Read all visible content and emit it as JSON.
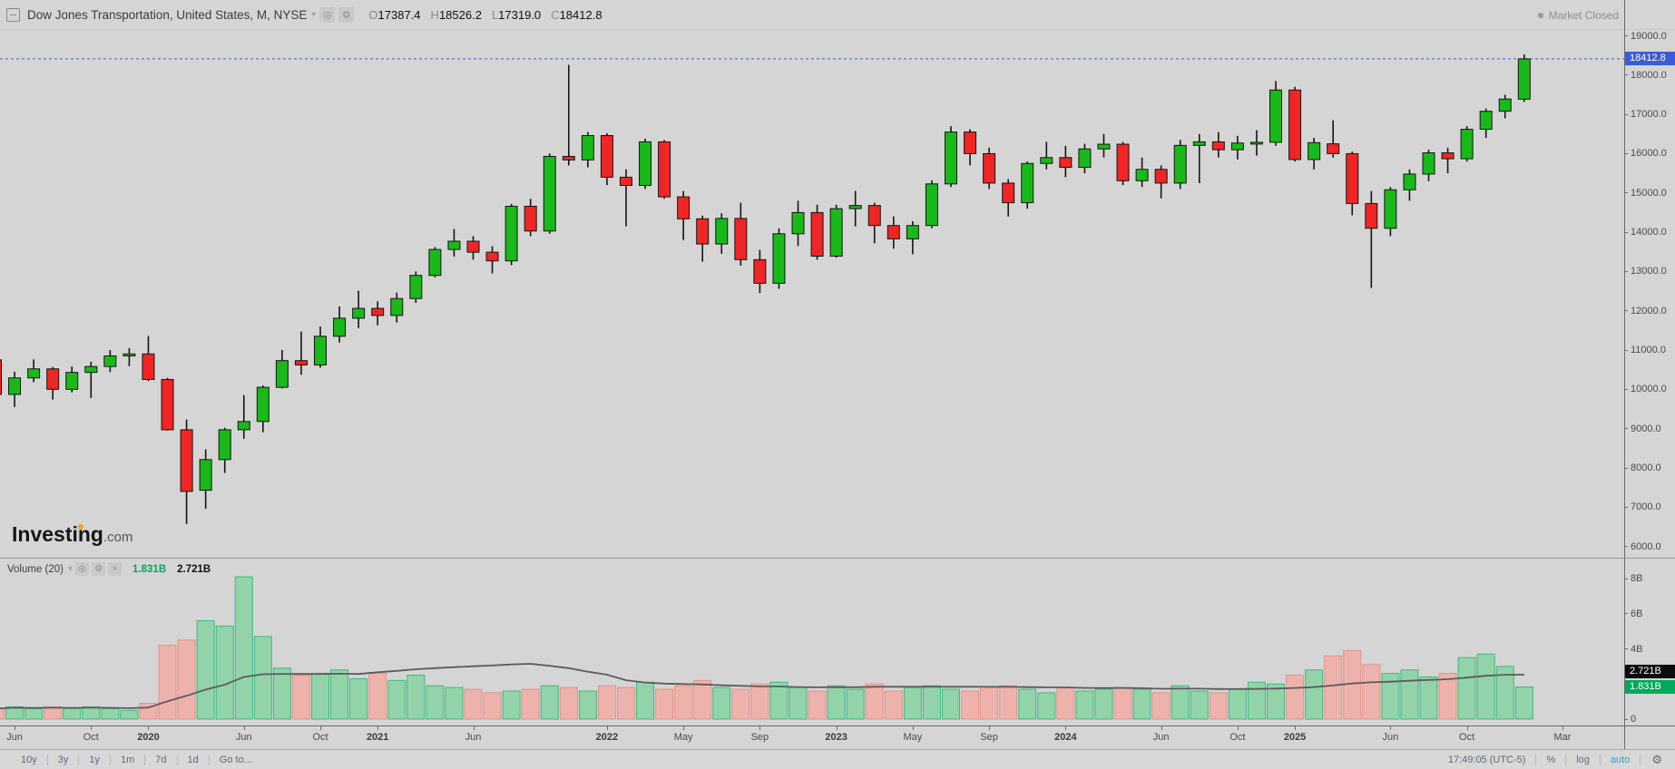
{
  "header": {
    "title": "Dow Jones Transportation, United States, M, NYSE",
    "ohlc": {
      "o_label": "O",
      "o": "17387.4",
      "h_label": "H",
      "h": "18526.2",
      "l_label": "L",
      "l": "17319.0",
      "c_label": "C",
      "c": "18412.8"
    },
    "market_status": "Market Closed"
  },
  "watermark": {
    "brand": "Investing",
    "suffix": ".com"
  },
  "price_axis": {
    "ticks": [
      19000,
      18000,
      17000,
      16000,
      15000,
      14000,
      13000,
      12000,
      11000,
      10000,
      9000,
      8000,
      7000,
      6000
    ],
    "last_price": 18412.8,
    "last_price_label": "18412.8"
  },
  "volume_pane": {
    "legend_title": "Volume (20)",
    "legend_values": {
      "current": "1.831B",
      "ma": "2.721B"
    },
    "axis_ticks": [
      {
        "v": 8,
        "t": "8B"
      },
      {
        "v": 6,
        "t": "6B"
      },
      {
        "v": 4,
        "t": "4B"
      },
      {
        "v": 0,
        "t": "0"
      }
    ],
    "badge_current_value": 1.831,
    "badge_ma_value": 2.721
  },
  "time_axis": {
    "labels": [
      {
        "i": 1,
        "t": "Jun"
      },
      {
        "i": 5,
        "t": "Oct"
      },
      {
        "i": 8,
        "t": "2020",
        "year": true
      },
      {
        "i": 13,
        "t": "Jun"
      },
      {
        "i": 17,
        "t": "Oct"
      },
      {
        "i": 20,
        "t": "2021",
        "year": true
      },
      {
        "i": 25,
        "t": "Jun"
      },
      {
        "i": 32,
        "t": "2022",
        "year": true
      },
      {
        "i": 36,
        "t": "May"
      },
      {
        "i": 40,
        "t": "Sep"
      },
      {
        "i": 44,
        "t": "2023",
        "year": true
      },
      {
        "i": 48,
        "t": "May"
      },
      {
        "i": 52,
        "t": "Sep"
      },
      {
        "i": 56,
        "t": "2024",
        "year": true
      },
      {
        "i": 61,
        "t": "Jun"
      },
      {
        "i": 65,
        "t": "Oct"
      },
      {
        "i": 68,
        "t": "2025",
        "year": true
      },
      {
        "i": 73,
        "t": "Jun"
      },
      {
        "i": 77,
        "t": "Oct"
      },
      {
        "i": 82,
        "t": "Mar"
      }
    ]
  },
  "toolbar": {
    "ranges": [
      "10y",
      "3y",
      "1y",
      "1m",
      "7d",
      "1d",
      "Go to..."
    ],
    "clock": "17:49:05 (UTC-5)",
    "percent": "%",
    "log": "log",
    "auto": "auto"
  },
  "colors": {
    "background": "#D5D5D5",
    "candle_up": "#18B918",
    "candle_down": "#F02525",
    "candle_border": "#151515",
    "vol_up_fill": "#93D3A9",
    "vol_up_border": "#3DBA7E",
    "vol_down_fill": "#EDB2AC",
    "vol_down_border": "#E59188",
    "vol_ma_line": "#5C5C5C",
    "price_line_blue": "#3D5BD8",
    "badge_ma_bg": "#0B0B0B",
    "badge_current_bg": "#00A95C",
    "axis_text": "#4A4A4A"
  },
  "chart_data": {
    "type": "candlestick",
    "title": "Dow Jones Transportation, United States, M, NYSE",
    "interval": "monthly",
    "start_month": "2019-05",
    "ylabel": "price",
    "ylim": [
      5840,
      19210
    ],
    "volume_ylim_B": [
      0,
      9.2
    ],
    "volume_ma_window": 20,
    "legend_position": "top-left",
    "grid": false,
    "last_close": 18412.8,
    "candles_ohlcv": [
      [
        10750,
        10800,
        9715,
        9870,
        0.6
      ],
      [
        9870,
        10450,
        9550,
        10290,
        0.7
      ],
      [
        10290,
        10760,
        10180,
        10520,
        0.6
      ],
      [
        10520,
        10570,
        9740,
        10000,
        0.7
      ],
      [
        10000,
        10580,
        9920,
        10430,
        0.6
      ],
      [
        10430,
        10700,
        9780,
        10580,
        0.7
      ],
      [
        10580,
        11000,
        10440,
        10850,
        0.6
      ],
      [
        10850,
        11050,
        10590,
        10900,
        0.5
      ],
      [
        10900,
        11360,
        10210,
        10250,
        0.9
      ],
      [
        10250,
        10290,
        8950,
        8970,
        4.2
      ],
      [
        8970,
        9230,
        6570,
        7400,
        4.5
      ],
      [
        7430,
        8470,
        6960,
        8210,
        5.6
      ],
      [
        8210,
        9020,
        7870,
        8970,
        5.3
      ],
      [
        8970,
        9850,
        8740,
        9180,
        8.1
      ],
      [
        9180,
        10100,
        8910,
        10050,
        4.7
      ],
      [
        10050,
        11000,
        10020,
        10730,
        2.9
      ],
      [
        10730,
        11470,
        10370,
        10620,
        2.5
      ],
      [
        10620,
        11600,
        10550,
        11350,
        2.6
      ],
      [
        11350,
        12110,
        11190,
        11810,
        2.8
      ],
      [
        11810,
        12510,
        11560,
        12060,
        2.3
      ],
      [
        12060,
        12240,
        11630,
        11880,
        2.6
      ],
      [
        11880,
        12460,
        11700,
        12310,
        2.2
      ],
      [
        12310,
        13000,
        12200,
        12900,
        2.5
      ],
      [
        12900,
        13620,
        12850,
        13560,
        1.9
      ],
      [
        13560,
        14080,
        13380,
        13770,
        1.8
      ],
      [
        13770,
        13900,
        13300,
        13490,
        1.7
      ],
      [
        13490,
        13640,
        12950,
        13270,
        1.5
      ],
      [
        13270,
        14720,
        13160,
        14660,
        1.6
      ],
      [
        14660,
        14850,
        13900,
        14030,
        1.7
      ],
      [
        14030,
        16000,
        13960,
        15930,
        1.9
      ],
      [
        15930,
        18260,
        15700,
        15840,
        1.8
      ],
      [
        15840,
        16550,
        15650,
        16460,
        1.6
      ],
      [
        16460,
        16520,
        15200,
        15400,
        1.9
      ],
      [
        15400,
        15600,
        14150,
        15190,
        1.8
      ],
      [
        15190,
        16380,
        15100,
        16300,
        2.1
      ],
      [
        16300,
        16350,
        14850,
        14900,
        1.7
      ],
      [
        14900,
        15050,
        13800,
        14340,
        1.9
      ],
      [
        14340,
        14420,
        13250,
        13700,
        2.2
      ],
      [
        13700,
        14480,
        13450,
        14350,
        1.8
      ],
      [
        14350,
        14750,
        13150,
        13300,
        1.7
      ],
      [
        13300,
        13550,
        12450,
        12700,
        2.0
      ],
      [
        12700,
        14100,
        12560,
        13960,
        2.1
      ],
      [
        13960,
        14800,
        13650,
        14500,
        1.8
      ],
      [
        14500,
        14700,
        13300,
        13390,
        1.6
      ],
      [
        13390,
        14700,
        13350,
        14600,
        1.9
      ],
      [
        14600,
        15050,
        14150,
        14680,
        1.7
      ],
      [
        14680,
        14750,
        13720,
        14170,
        2.0
      ],
      [
        14170,
        14400,
        13580,
        13830,
        1.6
      ],
      [
        13830,
        14280,
        13440,
        14170,
        1.8
      ],
      [
        14170,
        15320,
        14100,
        15230,
        1.9
      ],
      [
        15230,
        16700,
        15150,
        16550,
        1.7
      ],
      [
        16550,
        16620,
        15700,
        16000,
        1.6
      ],
      [
        16000,
        16150,
        15100,
        15250,
        1.8
      ],
      [
        15250,
        15350,
        14400,
        14750,
        1.9
      ],
      [
        14750,
        15800,
        14600,
        15750,
        1.7
      ],
      [
        15750,
        16300,
        15600,
        15900,
        1.5
      ],
      [
        15900,
        16200,
        15400,
        15650,
        1.8
      ],
      [
        15650,
        16250,
        15500,
        16120,
        1.6
      ],
      [
        16120,
        16500,
        15900,
        16240,
        1.7
      ],
      [
        16240,
        16300,
        15200,
        15310,
        1.8
      ],
      [
        15310,
        15900,
        15150,
        15600,
        1.7
      ],
      [
        15600,
        15700,
        14860,
        15250,
        1.5
      ],
      [
        15250,
        16350,
        15100,
        16210,
        1.9
      ],
      [
        16210,
        16500,
        15250,
        16300,
        1.6
      ],
      [
        16300,
        16550,
        15900,
        16100,
        1.5
      ],
      [
        16100,
        16450,
        15850,
        16270,
        1.7
      ],
      [
        16270,
        16600,
        15950,
        16290,
        2.1
      ],
      [
        16290,
        17850,
        16200,
        17620,
        2.0
      ],
      [
        17620,
        17700,
        15800,
        15850,
        2.5
      ],
      [
        15850,
        16400,
        15600,
        16280,
        2.8
      ],
      [
        16250,
        16850,
        15900,
        16000,
        3.6
      ],
      [
        16000,
        16050,
        14430,
        14730,
        3.9
      ],
      [
        14730,
        15050,
        12580,
        14100,
        3.1
      ],
      [
        14100,
        15150,
        13900,
        15080,
        2.6
      ],
      [
        15080,
        15600,
        14800,
        15480,
        2.8
      ],
      [
        15480,
        16100,
        15300,
        16020,
        2.4
      ],
      [
        16020,
        16150,
        15500,
        15870,
        2.6
      ],
      [
        15870,
        16700,
        15800,
        16620,
        3.5
      ],
      [
        16620,
        17150,
        16400,
        17080,
        3.7
      ],
      [
        17080,
        17500,
        16900,
        17390,
        3.0
      ],
      [
        17387.4,
        18526.2,
        17319.0,
        18412.8,
        1.831
      ]
    ]
  }
}
